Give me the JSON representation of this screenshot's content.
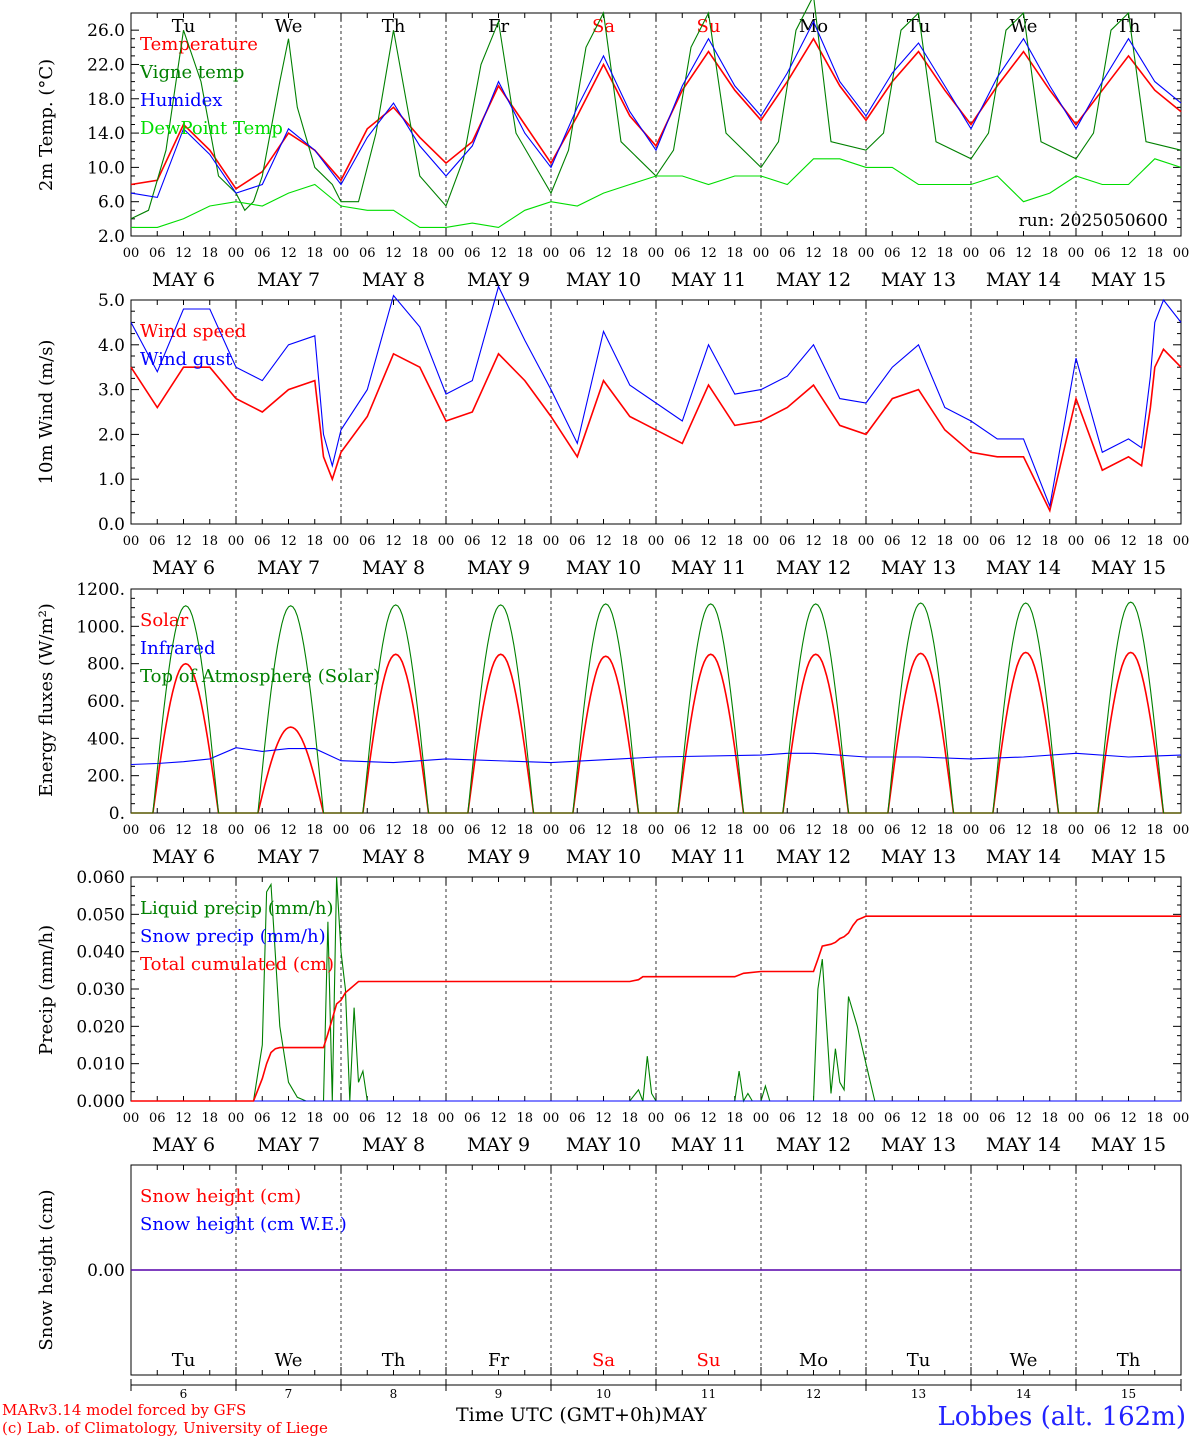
{
  "days": {
    "names": [
      "Tu",
      "We",
      "Th",
      "Fr",
      "Sa",
      "Su",
      "Mo",
      "Tu",
      "We",
      "Th"
    ],
    "weekend_flags": [
      false,
      false,
      false,
      false,
      true,
      true,
      false,
      false,
      false,
      false
    ],
    "dates": [
      "MAY  6",
      "MAY  7",
      "MAY  8",
      "MAY  9",
      "MAY 10",
      "MAY 11",
      "MAY 12",
      "MAY 13",
      "MAY 14",
      "MAY 15"
    ],
    "day_numbers": [
      "6",
      "7",
      "8",
      "9",
      "10",
      "11",
      "12",
      "13",
      "14",
      "15"
    ],
    "hour_ticks": [
      "00",
      "06",
      "12",
      "18"
    ],
    "final_tick": "00"
  },
  "colors": {
    "red": "#ff0000",
    "green": "#008000",
    "blue": "#0000ff",
    "lime": "#00dd00",
    "axis": "#000000"
  },
  "chart_data": [
    {
      "type": "line",
      "id": "temperature",
      "ylabel": "2m Temp. (°C)",
      "ylim": [
        2.0,
        28.0
      ],
      "yticks": [
        "2.0",
        "6.0",
        "10.0",
        "14.0",
        "18.0",
        "22.0",
        "26.0"
      ],
      "annotation": "run: 2025050600",
      "series": [
        {
          "name": "Temperature",
          "color": "red",
          "x": [
            0,
            6,
            12,
            18,
            24,
            30,
            36,
            42,
            48,
            54,
            60,
            66,
            72,
            78,
            84,
            90,
            96,
            102,
            108,
            114,
            120,
            126,
            132,
            138,
            144,
            150,
            156,
            162,
            168,
            174,
            180,
            186,
            192,
            198,
            204,
            210,
            216,
            222,
            228,
            234,
            240
          ],
          "y": [
            8,
            8.5,
            15,
            12,
            7.5,
            9.5,
            14,
            12,
            8.5,
            14.5,
            17,
            13.5,
            10.5,
            13,
            19.5,
            15,
            10.5,
            16,
            22,
            16,
            12.5,
            19,
            23.5,
            19,
            15.5,
            20,
            25,
            19.5,
            15.5,
            20,
            23.5,
            19,
            15,
            19.5,
            23.5,
            19,
            15,
            19,
            23,
            19,
            16.5
          ]
        },
        {
          "name": "Vigne temp",
          "color": "green",
          "x": [
            0,
            4,
            8,
            12,
            16,
            20,
            24,
            26,
            28,
            30,
            34,
            36,
            38,
            42,
            46,
            48,
            52,
            56,
            60,
            66,
            72,
            76,
            80,
            84,
            88,
            96,
            100,
            104,
            108,
            112,
            120,
            124,
            128,
            132,
            136,
            144,
            148,
            152,
            156,
            160,
            168,
            172,
            176,
            180,
            184,
            192,
            196,
            200,
            204,
            208,
            216,
            220,
            224,
            228,
            232,
            240
          ],
          "y": [
            4,
            5,
            12,
            26,
            20,
            9,
            7,
            5,
            6,
            9,
            20,
            25,
            17,
            10,
            8,
            6,
            6,
            14,
            26,
            9,
            5.5,
            11,
            22,
            27,
            14,
            7,
            12,
            24,
            28,
            13,
            9,
            12,
            24,
            28,
            14,
            10,
            13,
            26,
            30,
            13,
            12,
            14,
            26,
            28,
            13,
            11,
            14,
            26,
            28,
            13,
            11,
            14,
            26,
            28,
            13,
            12
          ]
        },
        {
          "name": "Humidex",
          "color": "blue",
          "x": [
            0,
            6,
            12,
            18,
            24,
            30,
            36,
            42,
            48,
            54,
            60,
            66,
            72,
            78,
            84,
            90,
            96,
            102,
            108,
            114,
            120,
            126,
            132,
            138,
            144,
            150,
            156,
            162,
            168,
            174,
            180,
            186,
            192,
            198,
            204,
            210,
            216,
            222,
            228,
            234,
            240
          ],
          "y": [
            7,
            6.5,
            14.5,
            11.5,
            7,
            8,
            14.5,
            12,
            8,
            13.5,
            17.5,
            12.5,
            9,
            12.5,
            20,
            14,
            10,
            17,
            23,
            16.5,
            12,
            19.5,
            25,
            19.5,
            16,
            21,
            27,
            20,
            16,
            21,
            24.5,
            19.5,
            14.5,
            20.5,
            25,
            19.5,
            14.5,
            20,
            25,
            20,
            17.5
          ]
        },
        {
          "name": "DewPoint Temp",
          "color": "lime",
          "x": [
            0,
            6,
            12,
            18,
            24,
            30,
            36,
            42,
            48,
            54,
            60,
            66,
            72,
            78,
            84,
            90,
            96,
            102,
            108,
            114,
            120,
            126,
            132,
            138,
            144,
            150,
            156,
            162,
            168,
            174,
            180,
            186,
            192,
            198,
            204,
            210,
            216,
            222,
            228,
            234,
            240
          ],
          "y": [
            3,
            3,
            4,
            5.5,
            6,
            5.5,
            7,
            8,
            5.5,
            5,
            5,
            3,
            3,
            3.5,
            3,
            5,
            6,
            5.5,
            7,
            8,
            9,
            9,
            8,
            9,
            9,
            8,
            11,
            11,
            10,
            10,
            8,
            8,
            8,
            9,
            6,
            7,
            9,
            8,
            8,
            11,
            10
          ]
        }
      ]
    },
    {
      "type": "line",
      "id": "wind",
      "ylabel": "10m Wind (m/s)",
      "ylim": [
        0.0,
        5.0
      ],
      "yticks": [
        "0.0",
        "1.0",
        "2.0",
        "3.0",
        "4.0",
        "5.0"
      ],
      "series": [
        {
          "name": "Wind speed",
          "color": "red",
          "x": [
            0,
            6,
            12,
            18,
            24,
            30,
            36,
            42,
            44,
            46,
            48,
            54,
            60,
            66,
            72,
            78,
            84,
            90,
            96,
            102,
            108,
            114,
            120,
            126,
            132,
            138,
            144,
            150,
            156,
            162,
            168,
            174,
            180,
            186,
            192,
            198,
            204,
            210,
            216,
            222,
            228,
            231,
            233,
            234,
            236,
            240
          ],
          "y": [
            3.5,
            2.6,
            3.5,
            3.5,
            2.8,
            2.5,
            3,
            3.2,
            1.5,
            1.0,
            1.6,
            2.4,
            3.8,
            3.5,
            2.3,
            2.5,
            3.8,
            3.2,
            2.4,
            1.5,
            3.2,
            2.4,
            2.1,
            1.8,
            3.1,
            2.2,
            2.3,
            2.6,
            3.1,
            2.2,
            2.0,
            2.8,
            3.0,
            2.1,
            1.6,
            1.5,
            1.5,
            0.3,
            2.8,
            1.2,
            1.5,
            1.3,
            2.6,
            3.5,
            3.9,
            3.5
          ]
        },
        {
          "name": "Wind gust",
          "color": "blue",
          "x": [
            0,
            6,
            12,
            18,
            24,
            30,
            36,
            42,
            44,
            46,
            48,
            54,
            60,
            66,
            72,
            78,
            84,
            90,
            96,
            102,
            108,
            114,
            120,
            126,
            132,
            138,
            144,
            150,
            156,
            162,
            168,
            174,
            180,
            186,
            192,
            198,
            204,
            210,
            216,
            222,
            228,
            231,
            233,
            234,
            236,
            240
          ],
          "y": [
            4.5,
            3.4,
            4.8,
            4.8,
            3.5,
            3.2,
            4.0,
            4.2,
            2.0,
            1.3,
            2.1,
            3.0,
            5.1,
            4.4,
            2.9,
            3.2,
            5.3,
            4.1,
            3.0,
            1.8,
            4.3,
            3.1,
            2.7,
            2.3,
            4.0,
            2.9,
            3.0,
            3.3,
            4.0,
            2.8,
            2.7,
            3.5,
            4.0,
            2.6,
            2.3,
            1.9,
            1.9,
            0.4,
            3.7,
            1.6,
            1.9,
            1.7,
            3.3,
            4.5,
            5.0,
            4.5
          ]
        }
      ]
    },
    {
      "type": "line",
      "id": "fluxes",
      "ylabel": "Energy fluxes (W/m²)",
      "ylim": [
        0,
        1200
      ],
      "yticks": [
        "0.",
        "200.",
        "400.",
        "600.",
        "800.",
        "1000.",
        "1200."
      ],
      "series": [
        {
          "name": "Solar",
          "color": "red",
          "peaks": [
            800,
            460,
            850,
            850,
            840,
            850,
            850,
            855,
            860,
            860
          ]
        },
        {
          "name": "Infrared",
          "color": "blue",
          "x": [
            0,
            6,
            12,
            18,
            24,
            30,
            36,
            42,
            48,
            60,
            72,
            96,
            120,
            144,
            150,
            156,
            168,
            180,
            192,
            204,
            216,
            228,
            240
          ],
          "y": [
            260,
            265,
            275,
            290,
            350,
            330,
            345,
            345,
            280,
            270,
            290,
            270,
            300,
            310,
            320,
            320,
            300,
            300,
            290,
            300,
            320,
            300,
            310
          ]
        },
        {
          "name": "Top of Atmosphere (Solar)",
          "color": "green",
          "peaks": [
            1110,
            1110,
            1115,
            1115,
            1120,
            1120,
            1120,
            1125,
            1125,
            1130
          ]
        }
      ]
    },
    {
      "type": "line",
      "id": "precip",
      "ylabel": "Precip (mm/h)",
      "ylim": [
        0.0,
        0.06
      ],
      "yticks": [
        "0.000",
        "0.010",
        "0.020",
        "0.030",
        "0.040",
        "0.050",
        "0.060"
      ],
      "series": [
        {
          "name": "Liquid precip (mm/h)",
          "color": "green",
          "x": [
            0,
            28,
            30,
            31,
            32,
            34,
            36,
            38,
            40,
            44,
            45,
            46,
            47,
            48,
            49,
            50,
            51,
            52,
            53,
            54,
            114,
            116,
            117,
            118,
            119,
            120,
            138,
            139,
            140,
            141,
            142,
            143,
            144,
            145,
            146,
            147,
            148,
            156,
            157,
            158,
            160,
            161,
            162,
            163,
            164,
            166,
            168,
            170,
            171,
            240
          ],
          "y": [
            0,
            0,
            0.015,
            0.056,
            0.058,
            0.02,
            0.005,
            0.001,
            0,
            0,
            0.048,
            0,
            0.06,
            0.04,
            0.03,
            0,
            0.025,
            0.005,
            0.008,
            0,
            0,
            0.003,
            0,
            0.012,
            0.002,
            0,
            0,
            0.008,
            0,
            0.002,
            0,
            0,
            0,
            0.004,
            0,
            0,
            0,
            0,
            0.03,
            0.038,
            0.002,
            0.014,
            0.005,
            0.003,
            0.028,
            0.02,
            0.01,
            0,
            0,
            0
          ]
        },
        {
          "name": "Snow precip (mm/h)",
          "color": "blue",
          "x": [
            0,
            240
          ],
          "y": [
            0,
            0
          ]
        },
        {
          "name": "Total cumulated (cm)",
          "color": "red",
          "x": [
            0,
            28,
            29,
            30,
            31,
            32,
            33,
            34,
            36,
            44,
            45,
            46,
            47,
            48,
            49,
            50,
            51,
            52,
            114,
            116,
            117,
            120,
            138,
            140,
            144,
            156,
            157,
            158,
            160,
            161,
            162,
            163,
            164,
            165,
            166,
            167,
            168,
            240
          ],
          "y": [
            0,
            0,
            0.003,
            0.006,
            0.01,
            0.013,
            0.014,
            0.0143,
            0.0143,
            0.0143,
            0.018,
            0.022,
            0.026,
            0.027,
            0.029,
            0.03,
            0.031,
            0.032,
            0.032,
            0.0325,
            0.0333,
            0.0333,
            0.0333,
            0.0342,
            0.0347,
            0.0347,
            0.038,
            0.0415,
            0.042,
            0.0425,
            0.0435,
            0.044,
            0.045,
            0.047,
            0.0485,
            0.049,
            0.0495,
            0.0495
          ]
        }
      ]
    },
    {
      "type": "line",
      "id": "snow",
      "ylabel": "Snow height (cm)",
      "ylim": [
        -1,
        1
      ],
      "yticks": [
        "0.00"
      ],
      "series": [
        {
          "name": "Snow height (cm)",
          "color": "red",
          "x": [
            0,
            240
          ],
          "y": [
            0,
            0
          ]
        },
        {
          "name": "Snow height (cm W.E.)",
          "color": "blue",
          "x": [
            0,
            240
          ],
          "y": [
            0,
            0
          ]
        }
      ]
    }
  ],
  "footer": {
    "model_line1": "MARv3.14 model forced by GFS",
    "model_line2": "(c) Lab. of Climatology, University of Liege",
    "axis_title": "Time UTC (GMT+0h)",
    "month": "MAY",
    "station": "Lobbes (alt. 162m)"
  }
}
